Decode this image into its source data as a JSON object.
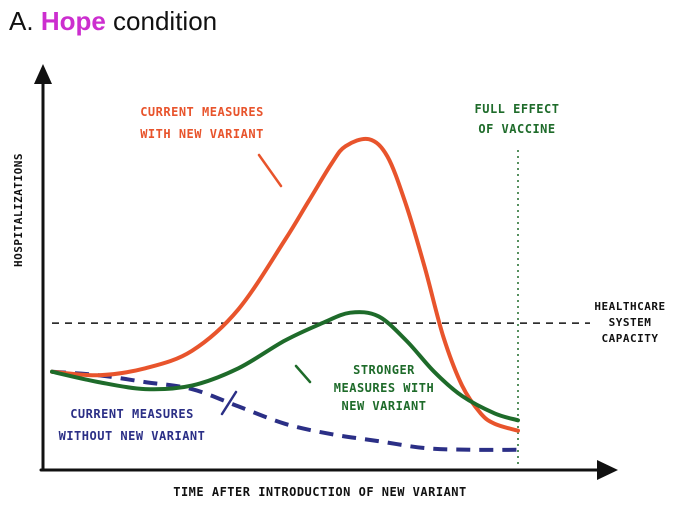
{
  "title": {
    "prefix": "A.",
    "highlight": "Hope",
    "suffix": "condition"
  },
  "colors": {
    "current_with_variant": "#e8542c",
    "stronger_measures": "#1e6b2a",
    "without_variant": "#2b2f86",
    "vaccine_line": "#1e6b2a",
    "capacity_line": "#111111",
    "highlight": "#cc2ecf"
  },
  "chart_data": {
    "type": "line",
    "title": "",
    "xlabel": "TIME AFTER INTRODUCTION OF NEW VARIANT",
    "ylabel": "HOSPITALIZATIONS",
    "xlim": [
      0,
      100
    ],
    "ylim": [
      0,
      100
    ],
    "grid": false,
    "legend": "inline annotations",
    "series": [
      {
        "key": "current_with_variant",
        "name": "CURRENT MEASURES WITH NEW VARIANT",
        "label_lines": [
          "CURRENT MEASURES",
          "WITH NEW VARIANT"
        ],
        "style": "solid",
        "x": [
          0,
          10,
          20,
          30,
          40,
          50,
          55,
          60,
          63,
          68,
          72,
          76,
          80,
          84,
          88,
          92,
          95,
          100
        ],
        "y": [
          24,
          23,
          25,
          30,
          42,
          62,
          73,
          84,
          89,
          91,
          86,
          72,
          54,
          34,
          20,
          12,
          9,
          7
        ]
      },
      {
        "key": "stronger_measures",
        "name": "STRONGER MEASURES WITH NEW VARIANT",
        "label_lines": [
          "STRONGER",
          "MEASURES WITH",
          "NEW VARIANT"
        ],
        "style": "solid",
        "x": [
          0,
          10,
          20,
          30,
          40,
          50,
          58,
          64,
          70,
          76,
          82,
          88,
          95,
          100
        ],
        "y": [
          24,
          21,
          19,
          20,
          25,
          33,
          38,
          41,
          40,
          33,
          24,
          17,
          12,
          10
        ]
      },
      {
        "key": "without_variant",
        "name": "CURRENT MEASURES WITHOUT NEW VARIANT",
        "label_lines": [
          "CURRENT MEASURES",
          "WITHOUT NEW VARIANT"
        ],
        "style": "dashed",
        "x": [
          0,
          10,
          20,
          30,
          40,
          50,
          60,
          70,
          80,
          90,
          100
        ],
        "y": [
          24,
          23,
          21,
          19,
          14,
          9,
          6,
          4,
          2,
          1.5,
          1.5
        ]
      }
    ],
    "reference_lines": [
      {
        "key": "capacity",
        "orientation": "horizontal",
        "value": 38,
        "style": "dashed",
        "label_lines": [
          "HEALTHCARE",
          "SYSTEM",
          "CAPACITY"
        ]
      },
      {
        "key": "vaccine",
        "orientation": "vertical",
        "value": 100,
        "style": "dotted",
        "label_lines": [
          "FULL EFFECT",
          "OF VACCINE"
        ]
      }
    ]
  }
}
